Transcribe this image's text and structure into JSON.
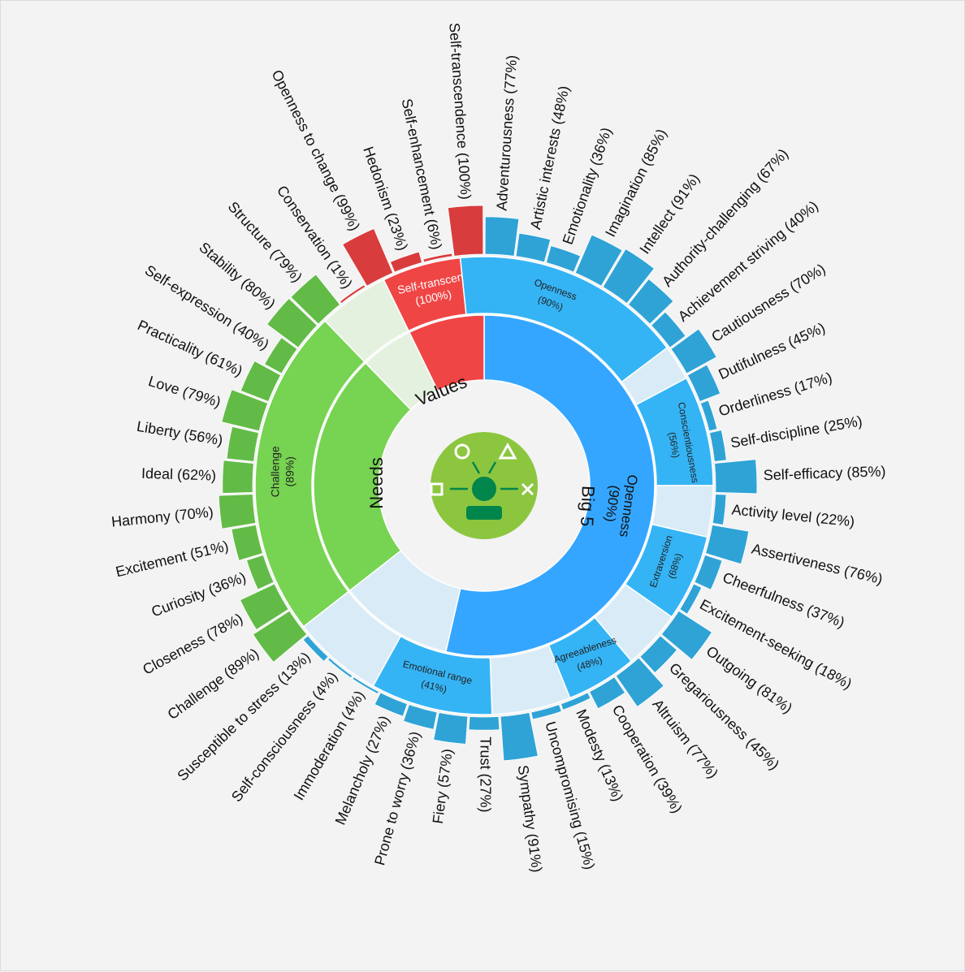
{
  "chart_data": {
    "type": "sunburst",
    "groups": [
      {
        "key": "big5",
        "label": "Big 5",
        "color": "#35a6ff"
      },
      {
        "key": "needs",
        "label": "Needs",
        "color": "#6dd24f"
      },
      {
        "key": "values",
        "label": "Values",
        "color": "#f04545"
      }
    ],
    "center_summary": {
      "name": "Openness",
      "percent": "(90%)"
    },
    "traits": [
      {
        "name": "Openness",
        "percent": "(90%)",
        "value": 90
      },
      {
        "name": "Conscientiousness",
        "percent": "(56%)",
        "value": 56
      },
      {
        "name": "Extraversion",
        "percent": "(68%)",
        "value": 68
      },
      {
        "name": "Agreeableness",
        "percent": "(48%)",
        "value": 48
      },
      {
        "name": "Emotional range",
        "percent": "(41%)",
        "value": 41
      },
      {
        "name": "Challenge",
        "percent": "(89%)",
        "value": 89
      },
      {
        "name": "Self-transcen",
        "percent": "(100%)",
        "value": 100
      }
    ],
    "facets": [
      {
        "label": "Adventurousness (77%)",
        "value": 77,
        "group": "big5"
      },
      {
        "label": "Artistic interests (48%)",
        "value": 48,
        "group": "big5"
      },
      {
        "label": "Emotionality (36%)",
        "value": 36,
        "group": "big5"
      },
      {
        "label": "Imagination (85%)",
        "value": 85,
        "group": "big5"
      },
      {
        "label": "Intellect (91%)",
        "value": 91,
        "group": "big5"
      },
      {
        "label": "Authority-challenging (67%)",
        "value": 67,
        "group": "big5"
      },
      {
        "label": "Achievement striving (40%)",
        "value": 40,
        "group": "big5"
      },
      {
        "label": "Cautiousness (70%)",
        "value": 70,
        "group": "big5"
      },
      {
        "label": "Dutifulness (45%)",
        "value": 45,
        "group": "big5"
      },
      {
        "label": "Orderliness (17%)",
        "value": 17,
        "group": "big5"
      },
      {
        "label": "Self-discipline (25%)",
        "value": 25,
        "group": "big5"
      },
      {
        "label": "Self-efficacy (85%)",
        "value": 85,
        "group": "big5"
      },
      {
        "label": "Activity level (22%)",
        "value": 22,
        "group": "big5"
      },
      {
        "label": "Assertiveness (76%)",
        "value": 76,
        "group": "big5"
      },
      {
        "label": "Cheerfulness (37%)",
        "value": 37,
        "group": "big5"
      },
      {
        "label": "Excitement-seeking (18%)",
        "value": 18,
        "group": "big5"
      },
      {
        "label": "Outgoing (81%)",
        "value": 81,
        "group": "big5"
      },
      {
        "label": "Gregariousness (45%)",
        "value": 45,
        "group": "big5"
      },
      {
        "label": "Altruism (77%)",
        "value": 77,
        "group": "big5"
      },
      {
        "label": "Cooperation (39%)",
        "value": 39,
        "group": "big5"
      },
      {
        "label": "Modesty (13%)",
        "value": 13,
        "group": "big5"
      },
      {
        "label": "Uncompromising (15%)",
        "value": 15,
        "group": "big5"
      },
      {
        "label": "Sympathy (91%)",
        "value": 91,
        "group": "big5"
      },
      {
        "label": "Trust (27%)",
        "value": 27,
        "group": "big5"
      },
      {
        "label": "Fiery (57%)",
        "value": 57,
        "group": "big5"
      },
      {
        "label": "Prone to worry (36%)",
        "value": 36,
        "group": "big5"
      },
      {
        "label": "Melancholy (27%)",
        "value": 27,
        "group": "big5"
      },
      {
        "label": "Immoderation (4%)",
        "value": 4,
        "group": "big5"
      },
      {
        "label": "Self-consciousness (4%)",
        "value": 4,
        "group": "big5"
      },
      {
        "label": "Susceptible to stress (13%)",
        "value": 13,
        "group": "big5"
      },
      {
        "label": "Challenge (89%)",
        "value": 89,
        "group": "needs"
      },
      {
        "label": "Closeness (78%)",
        "value": 78,
        "group": "needs"
      },
      {
        "label": "Curiosity (36%)",
        "value": 36,
        "group": "needs"
      },
      {
        "label": "Excitement (51%)",
        "value": 51,
        "group": "needs"
      },
      {
        "label": "Harmony (70%)",
        "value": 70,
        "group": "needs"
      },
      {
        "label": "Ideal (62%)",
        "value": 62,
        "group": "needs"
      },
      {
        "label": "Liberty (56%)",
        "value": 56,
        "group": "needs"
      },
      {
        "label": "Love (79%)",
        "value": 79,
        "group": "needs"
      },
      {
        "label": "Practicality (61%)",
        "value": 61,
        "group": "needs"
      },
      {
        "label": "Self-expression (40%)",
        "value": 40,
        "group": "needs"
      },
      {
        "label": "Stability (80%)",
        "value": 80,
        "group": "needs"
      },
      {
        "label": "Structure (79%)",
        "value": 79,
        "group": "needs"
      },
      {
        "label": "Conservation (1%)",
        "value": 1,
        "group": "values"
      },
      {
        "label": "Openness to change (99%)",
        "value": 99,
        "group": "values"
      },
      {
        "label": "Hedonism (23%)",
        "value": 23,
        "group": "values"
      },
      {
        "label": "Self-enhancement (6%)",
        "value": 6,
        "group": "values"
      },
      {
        "label": "Self-transcendence (100%)",
        "value": 100,
        "group": "values"
      }
    ],
    "colors": {
      "big5_bar": "#2fa3d6",
      "big5_trait": "#35b4f5",
      "big5_inner": "#35a6ff",
      "needs_bar": "#62bb46",
      "needs_trait": "#77d352",
      "values_bar": "#d93c3c",
      "values_trait": "#f04545",
      "remainder": "#d9ebf7",
      "remainder_needs": "#e4f1de",
      "logo_bg": "#8cc63f",
      "logo_fg": "#00864a"
    }
  }
}
